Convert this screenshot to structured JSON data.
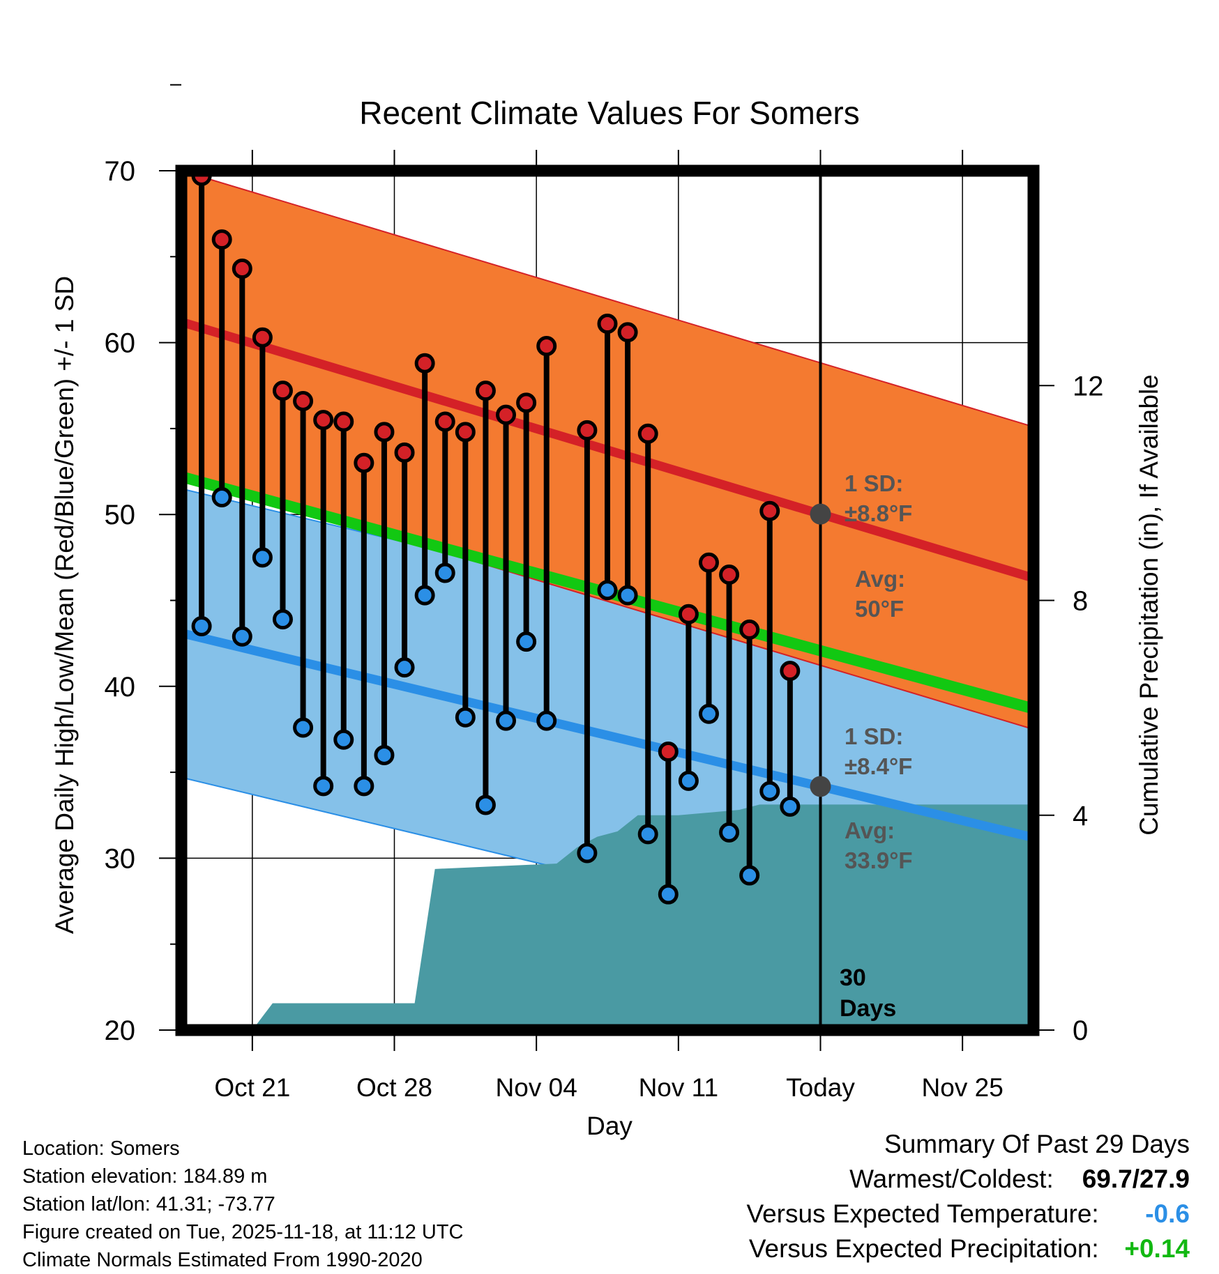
{
  "chart_data": {
    "type": "line",
    "title": "Recent Climate Values For Somers",
    "xlabel": "Day",
    "ylabel": "Average Daily High/Low/Mean (Red/Blue/Green) +/- 1 SD",
    "y2label": "Cumulative Precipitation (in), If Available",
    "ylim": [
      20,
      70
    ],
    "y_ticks": [
      "20",
      "30",
      "40",
      "50",
      "60",
      "70"
    ],
    "y2lim": [
      0,
      16
    ],
    "y2_ticks": [
      "0",
      "4",
      "8",
      "12"
    ],
    "x_range_days": [
      -0.5,
      41.5
    ],
    "x_ticks": [
      {
        "day": 3,
        "label": "Oct 21"
      },
      {
        "day": 10,
        "label": "Oct 28"
      },
      {
        "day": 17,
        "label": "Nov 04"
      },
      {
        "day": 24,
        "label": "Nov 11"
      },
      {
        "day": 31,
        "label": "Today"
      },
      {
        "day": 38,
        "label": "Nov 25"
      }
    ],
    "x_day_note": "day 0 = Oct 18",
    "today_day": 31,
    "normals": {
      "high_avg_start": 61.2,
      "high_avg_end": 46.3,
      "low_avg_start": 43.1,
      "low_avg_end": 31.2,
      "mean_avg_start": 52.2,
      "mean_avg_end": 38.7,
      "high_sd": 8.8,
      "low_sd": 8.4
    },
    "series": [
      {
        "name": "Daily High",
        "color": "#d42127",
        "values": [
          69.7,
          66.0,
          64.3,
          60.3,
          57.2,
          56.6,
          55.5,
          55.4,
          53.0,
          54.8,
          53.6,
          58.8,
          55.4,
          54.8,
          57.2,
          55.8,
          56.5,
          59.8,
          null,
          54.9,
          61.1,
          60.6,
          54.7,
          36.2,
          44.2,
          47.2,
          46.5,
          43.3,
          50.2,
          40.9
        ]
      },
      {
        "name": "Daily Low",
        "color": "#2b8fe6",
        "values": [
          43.5,
          51.0,
          42.9,
          47.5,
          43.9,
          37.6,
          34.2,
          36.9,
          34.2,
          36.0,
          41.1,
          45.3,
          46.6,
          38.2,
          33.1,
          38.0,
          42.6,
          38.0,
          null,
          30.3,
          45.6,
          45.3,
          31.4,
          27.9,
          34.5,
          38.4,
          31.5,
          29.0,
          33.9,
          33.0
        ]
      },
      {
        "name": "Cumulative Precipitation",
        "color": "#4a9aa3",
        "x": [
          3,
          4,
          11,
          12,
          18,
          19,
          20,
          21,
          22,
          23,
          24,
          27,
          28,
          31,
          41.5
        ],
        "values": [
          0.0,
          0.5,
          0.5,
          3.0,
          3.1,
          3.4,
          3.6,
          3.7,
          4.0,
          4.0,
          4.0,
          4.1,
          4.2,
          4.2,
          4.2
        ]
      }
    ],
    "annotations": {
      "high_sd_label": "1 SD:",
      "high_sd_value": "±8.8°F",
      "high_avg_label": "Avg:",
      "high_avg_value": "50°F",
      "low_sd_label": "1 SD:",
      "low_sd_value": "±8.4°F",
      "low_avg_label": "Avg:",
      "low_avg_value": "33.9°F",
      "days_count": "30",
      "days_label": "Days"
    },
    "colors": {
      "high_band": "#f47a30",
      "high_line": "#d42127",
      "low_band": "#85c1e9",
      "low_line": "#2b8fe6",
      "mean_line": "#12c812",
      "precip": "#4a9aa3",
      "annotation": "#555555"
    }
  },
  "info": {
    "location": "Location: Somers",
    "elevation": "Station elevation: 184.89 m",
    "latlon": "Station lat/lon: 41.31; -73.77",
    "created": "Figure created on Tue, 2025-11-18, at 11:12 UTC",
    "normals": "Climate Normals Estimated From 1990-2020"
  },
  "summary": {
    "title": "Summary Of Past 29 Days",
    "warm_cold_label": "Warmest/Coldest:",
    "warm_cold_value": "69.7/27.9",
    "temp_label": "Versus Expected Temperature:",
    "temp_value": "-0.6",
    "temp_color": "#2b8fe6",
    "precip_label": "Versus Expected Precipitation:",
    "precip_value": "+0.14",
    "precip_color": "#12b812"
  }
}
